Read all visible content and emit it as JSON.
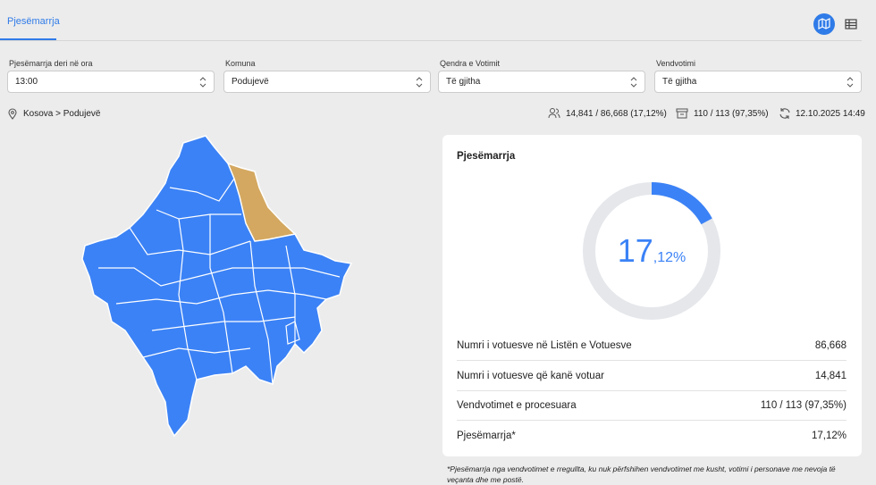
{
  "tabs": {
    "active": "Pjesëmarrja"
  },
  "filters": [
    {
      "label": "Pjesëmarrja deri në ora",
      "value": "13:00"
    },
    {
      "label": "Komuna",
      "value": "Podujevë"
    },
    {
      "label": "Qendra e Votimit",
      "value": "Të gjitha"
    },
    {
      "label": "Vendvotimi",
      "value": "Të gjitha"
    }
  ],
  "breadcrumb": "Kosova > Podujevë",
  "stats": {
    "voters": "14,841 / 86,668 (17,12%)",
    "polling_stations": "110 / 113 (97,35%)",
    "updated": "12.10.2025 14:49"
  },
  "card": {
    "title": "Pjesëmarrja",
    "gauge": {
      "value": 17.12,
      "integer_text": "17",
      "decimal_text": ",12%"
    },
    "rows": [
      {
        "label": "Numri i votuesve në Listën e Votuesve",
        "value": "86,668"
      },
      {
        "label": "Numri i votuesve që kanë votuar",
        "value": "14,841"
      },
      {
        "label": "Vendvotimet e procesuara",
        "value": "110 / 113 (97,35%)"
      },
      {
        "label": "Pjesëmarrja*",
        "value": "17,12%"
      }
    ]
  },
  "footnote": "*Pjesëmarrja nga vendvotimet e rregullta, ku nuk përfshihen vendvotimet me kusht, votimi i personave me nevoja të veçanta dhe me postë."
}
